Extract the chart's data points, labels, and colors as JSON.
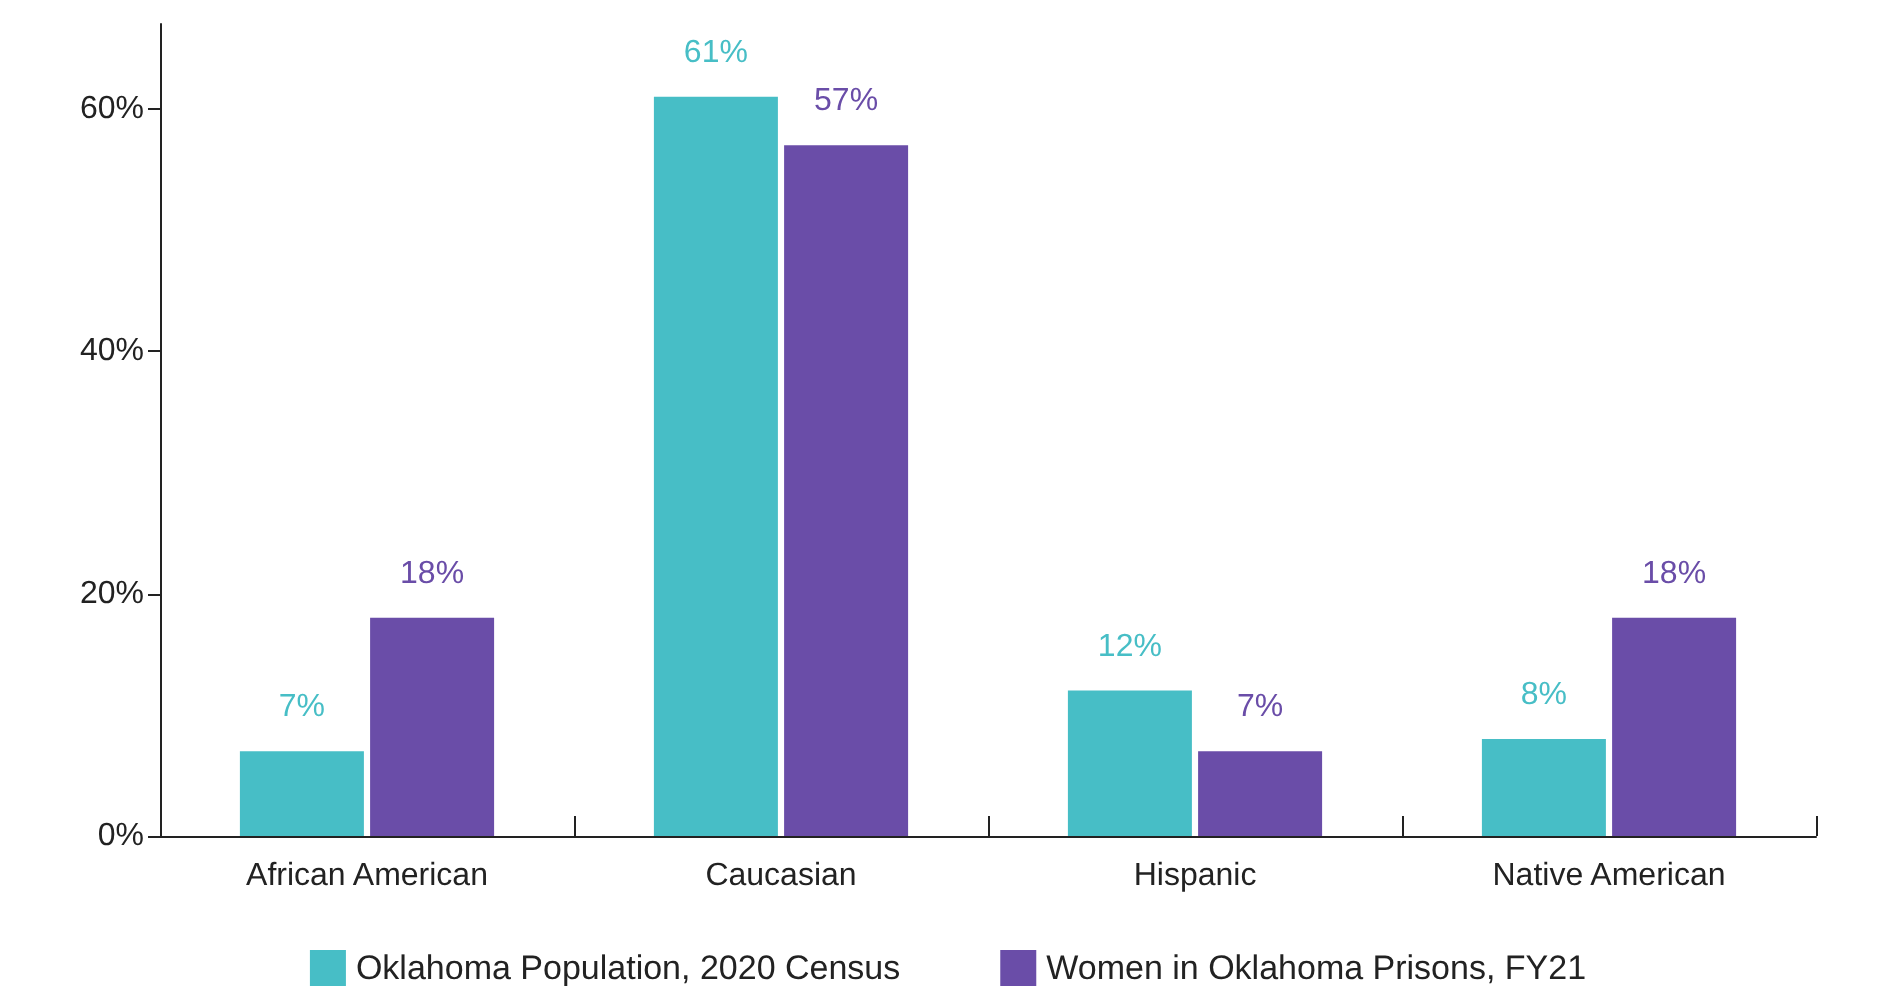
{
  "chart_data": {
    "type": "bar",
    "categories": [
      "African American",
      "Caucasian",
      "Hispanic",
      "Native American"
    ],
    "series": [
      {
        "name": "Oklahoma Population, 2020 Census",
        "color": "#47bec6",
        "values": [
          7,
          61,
          12,
          8
        ],
        "value_labels": [
          "7%",
          "61%",
          "12%",
          "8%"
        ]
      },
      {
        "name": "Women in Oklahoma Prisons, FY21",
        "color": "#6a4da8",
        "values": [
          18,
          57,
          7,
          18
        ],
        "value_labels": [
          "18%",
          "57%",
          "7%",
          "18%"
        ]
      }
    ],
    "ylim": [
      0,
      67
    ],
    "yticks": [
      {
        "value": 0,
        "label": "0%"
      },
      {
        "value": 20,
        "label": "20%"
      },
      {
        "value": 40,
        "label": "40%"
      },
      {
        "value": 60,
        "label": "60%"
      }
    ],
    "grid": false,
    "legend": "bottom"
  }
}
